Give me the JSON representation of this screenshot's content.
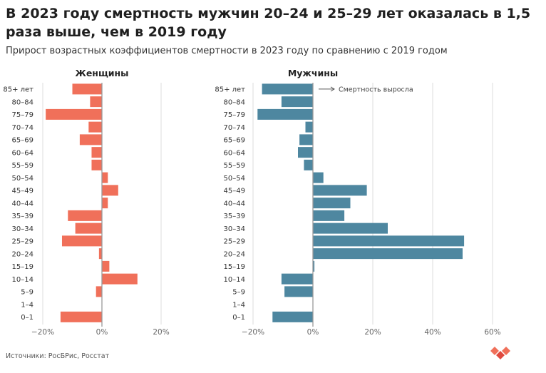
{
  "title": "В 2023 году смертность мужчин 20–24 и 25–29 лет оказалась в 1,5 раза выше, чем в 2019 году",
  "subtitle": "Прирост возрастных коэффициентов смертности в 2023 году по сравнению с 2019 годом",
  "source": "Источники: РосБРис, Росстат",
  "colors": {
    "women": "#f0705a",
    "men": "#4e87a0",
    "grid": "#dddddd",
    "axis": "#999999"
  },
  "chart_data": {
    "type": "bar",
    "orientation": "horizontal",
    "categories": [
      "85+ лет",
      "80–84",
      "75–79",
      "70–74",
      "65–69",
      "60–64",
      "55–59",
      "50–54",
      "45–49",
      "40–44",
      "35–39",
      "30–34",
      "25–29",
      "20–24",
      "15–19",
      "10–14",
      "5–9",
      "1–4",
      "0–1"
    ],
    "panels": [
      {
        "name": "Женщины",
        "color": "#f0705a",
        "xlim": [
          -20,
          30
        ],
        "ticks": [
          -20,
          0,
          20
        ],
        "tick_labels": [
          "−20%",
          "0%",
          "20%"
        ],
        "values": [
          -10,
          -4,
          -19,
          -4.5,
          -7.5,
          -3.5,
          -3.5,
          2,
          5.5,
          2,
          -11.5,
          -9,
          -13.5,
          -1,
          2.5,
          12,
          -2,
          0,
          -14
        ]
      },
      {
        "name": "Мужчины",
        "color": "#4e87a0",
        "xlim": [
          -20,
          60
        ],
        "ticks": [
          -20,
          0,
          20,
          40,
          60
        ],
        "tick_labels": [
          "−20%",
          "0%",
          "20%",
          "40%",
          "60%"
        ],
        "values": [
          -17,
          -10.5,
          -18.5,
          -2.5,
          -4.5,
          -5,
          -3,
          3.5,
          18,
          12.5,
          10.5,
          25,
          50.5,
          50,
          0.5,
          -10.5,
          -9.5,
          0,
          -13.5
        ],
        "annotation": "Смертность выросла"
      }
    ]
  }
}
